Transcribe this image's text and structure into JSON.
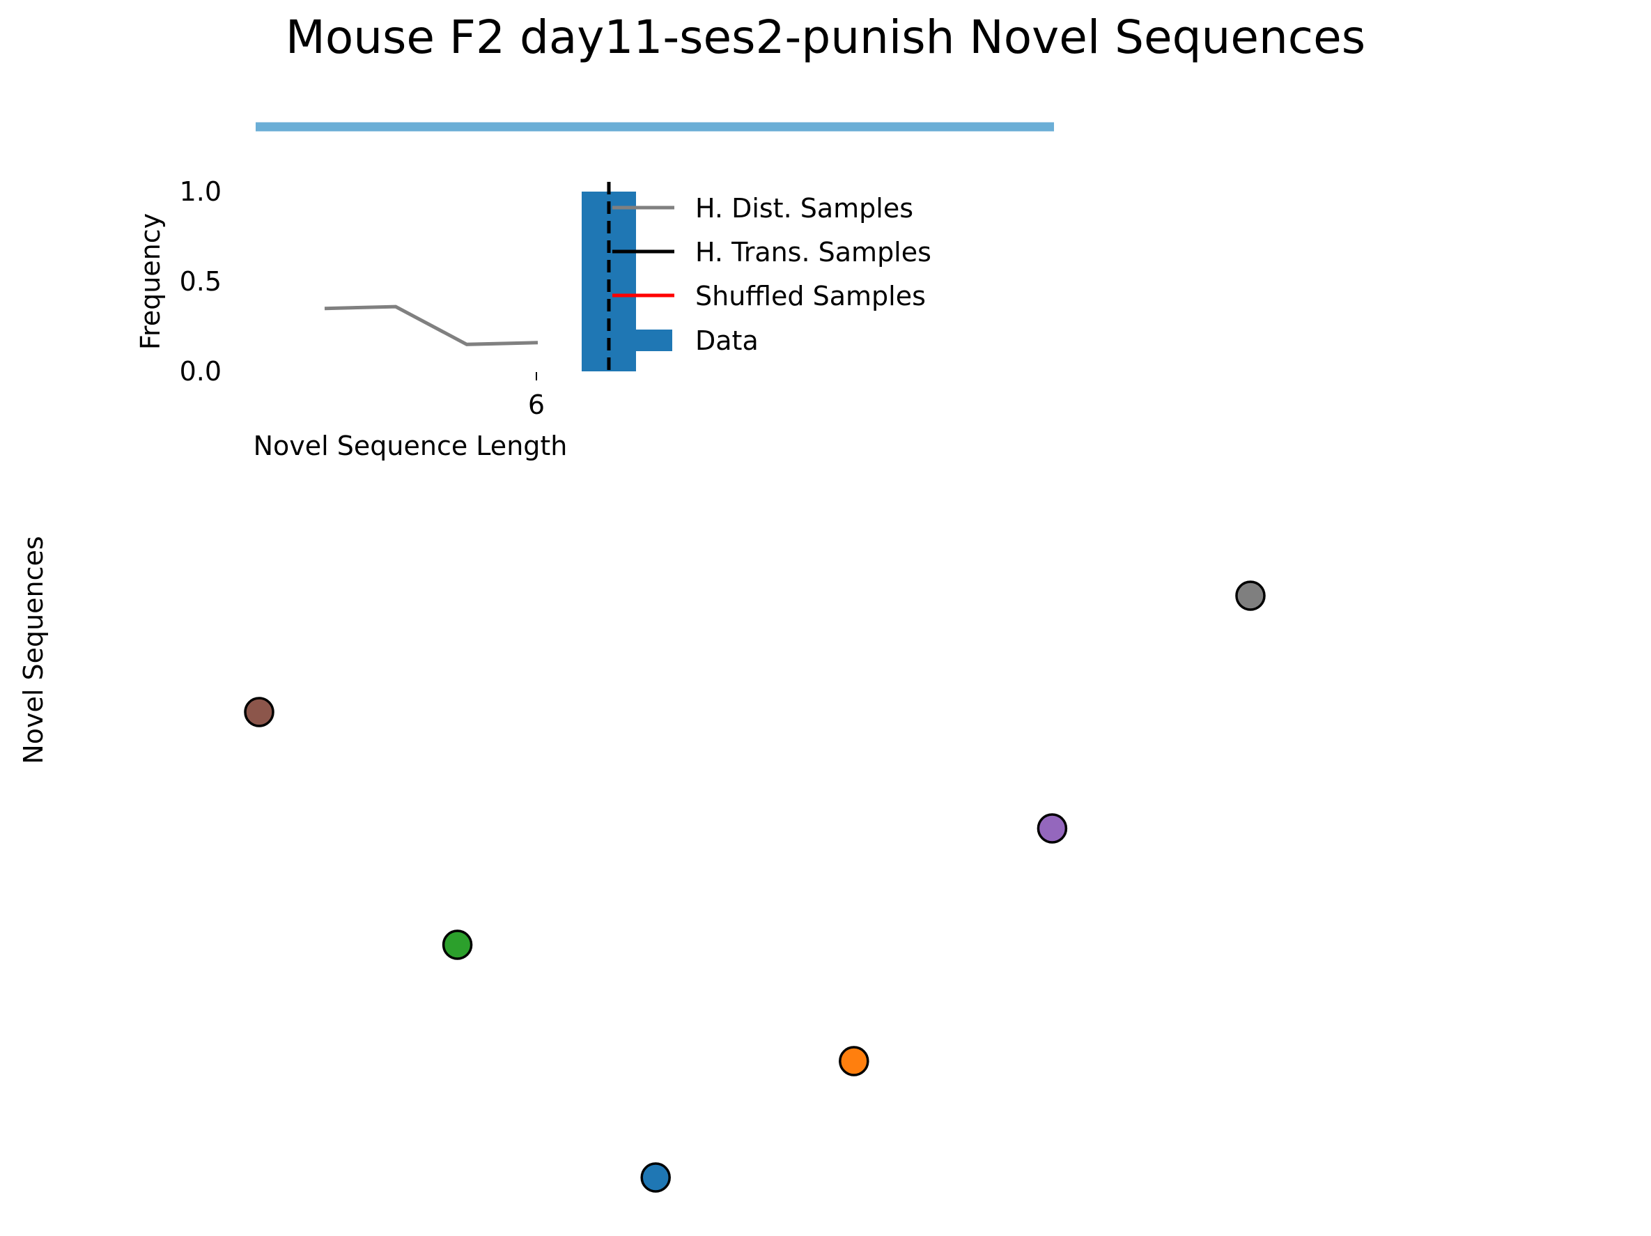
{
  "figure": {
    "title": "Mouse F2 day11-ses2-punish Novel Sequences",
    "top_bar_color": "#6baed6"
  },
  "chart_data": [
    {
      "type": "bar",
      "title": "",
      "xlabel": "Novel Sequence Length",
      "ylabel": "Frequency",
      "ylim": [
        0,
        1.0
      ],
      "y_ticks": [
        "0.0",
        "0.5",
        "1.0"
      ],
      "x_ticks": [
        "6"
      ],
      "categories": [
        "6"
      ],
      "values": [
        1.0
      ],
      "lines": [
        {
          "name": "H. Dist. Samples",
          "color": "#808080",
          "x": [
            2,
            3,
            4,
            5
          ],
          "y": [
            0.35,
            0.36,
            0.15,
            0.16
          ]
        }
      ],
      "dashed_marker": {
        "x": 6,
        "color": "#000000"
      },
      "legend": {
        "position": "right",
        "entries": [
          {
            "label": "H. Dist. Samples",
            "kind": "line",
            "color": "#808080"
          },
          {
            "label": "H. Trans. Samples",
            "kind": "line",
            "color": "#000000"
          },
          {
            "label": "Shuffled Samples",
            "kind": "line",
            "color": "#ff0000"
          },
          {
            "label": "Data",
            "kind": "patch",
            "color": "#1f77b4"
          }
        ]
      },
      "bar_color": "#1f77b4"
    },
    {
      "type": "scatter",
      "ylabel": "Novel Sequences",
      "xlabel": "",
      "axes_visible": false,
      "points": [
        {
          "x": 0,
          "y": 5,
          "color": "#8c564b",
          "name": "brown"
        },
        {
          "x": 1,
          "y": 3,
          "color": "#2ca02c",
          "name": "green"
        },
        {
          "x": 2,
          "y": 1,
          "color": "#1f77b4",
          "name": "blue"
        },
        {
          "x": 3,
          "y": 2,
          "color": "#ff7f0e",
          "name": "orange"
        },
        {
          "x": 4,
          "y": 4,
          "color": "#9467bd",
          "name": "purple"
        },
        {
          "x": 5,
          "y": 6,
          "color": "#7f7f7f",
          "name": "gray"
        }
      ]
    }
  ]
}
